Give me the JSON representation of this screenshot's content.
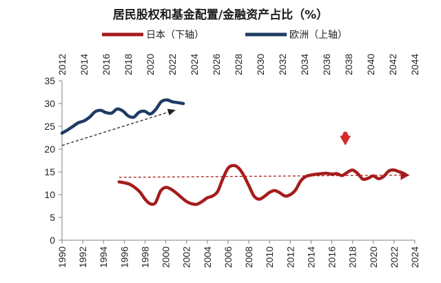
{
  "chart_data": {
    "type": "line",
    "title": "居民股权和基金配置/金融资产占比（%）",
    "legend_placement": "top",
    "grid": false,
    "y_axis": {
      "range": [
        0,
        35
      ],
      "ticks": [
        "0",
        "5",
        "10",
        "15",
        "20",
        "25",
        "30",
        "35"
      ]
    },
    "x_axis_bottom": {
      "range": [
        1990,
        2024
      ],
      "ticks": [
        "1990",
        "1992",
        "1994",
        "1996",
        "1998",
        "2000",
        "2002",
        "2004",
        "2006",
        "2008",
        "2010",
        "2012",
        "2014",
        "2016",
        "2018",
        "2020",
        "2022",
        "2024"
      ]
    },
    "x_axis_top": {
      "range": [
        2012,
        2044
      ],
      "ticks": [
        "2012",
        "2014",
        "2016",
        "2018",
        "2020",
        "2022",
        "2024",
        "2026",
        "2028",
        "2030",
        "2032",
        "2034",
        "2036",
        "2038",
        "2040",
        "2042",
        "2044"
      ]
    },
    "series": [
      {
        "name": "日本（下轴）",
        "axis": "bottom",
        "color": "#a51c1c",
        "x": [
          1995.5,
          1996,
          1996.5,
          1997,
          1997.5,
          1998,
          1998.5,
          1999,
          1999.5,
          2000,
          2000.5,
          2001,
          2001.5,
          2002,
          2002.5,
          2003,
          2003.5,
          2004,
          2004.5,
          2005,
          2005.5,
          2006,
          2006.5,
          2007,
          2007.5,
          2008,
          2008.5,
          2009,
          2009.5,
          2010,
          2010.5,
          2011,
          2011.5,
          2012,
          2012.5,
          2013,
          2013.5,
          2014,
          2014.5,
          2015,
          2015.5,
          2016,
          2016.5,
          2017,
          2017.5,
          2018,
          2018.5,
          2019,
          2019.5,
          2020,
          2020.5,
          2021,
          2021.5,
          2022,
          2022.5,
          2023
        ],
        "values": [
          12.8,
          12.6,
          12.3,
          11.6,
          10.6,
          9.0,
          8.0,
          8.2,
          10.8,
          11.6,
          11.2,
          10.4,
          9.4,
          8.5,
          8.0,
          7.9,
          8.5,
          9.3,
          9.7,
          10.7,
          13.5,
          15.8,
          16.4,
          15.9,
          14.3,
          12.0,
          9.7,
          9.0,
          9.6,
          10.5,
          10.9,
          10.4,
          9.7,
          10.0,
          11.0,
          13.0,
          14.0,
          14.3,
          14.5,
          14.6,
          14.7,
          14.5,
          14.6,
          14.2,
          14.9,
          15.4,
          14.6,
          13.4,
          13.6,
          14.1,
          13.5,
          14.0,
          15.2,
          15.4,
          15.0,
          14.6
        ]
      },
      {
        "name": "欧洲（上轴）",
        "axis": "top",
        "color": "#1f3c64",
        "x": [
          2012,
          2012.5,
          2013,
          2013.5,
          2014,
          2014.5,
          2015,
          2015.5,
          2016,
          2016.5,
          2017,
          2017.5,
          2018,
          2018.5,
          2019,
          2019.5,
          2020,
          2020.5,
          2021,
          2021.5,
          2022,
          2022.5,
          2023
        ],
        "values": [
          23.5,
          24.2,
          25.0,
          25.8,
          26.2,
          27.0,
          28.2,
          28.5,
          28.0,
          27.9,
          28.8,
          28.4,
          27.3,
          27.0,
          28.1,
          28.3,
          27.7,
          28.7,
          30.4,
          30.8,
          30.4,
          30.2,
          30.0
        ]
      }
    ],
    "annotations": [
      {
        "kind": "dashed-trend-arrow",
        "axis": "top",
        "from": [
          2012,
          20.8
        ],
        "to": [
          2022.3,
          28.6
        ]
      },
      {
        "kind": "dashed-trend-arrow",
        "axis": "bottom",
        "from": [
          1995.5,
          13.8
        ],
        "to": [
          2023.5,
          14.3
        ]
      },
      {
        "kind": "down-arrow",
        "axis": "bottom",
        "x": 2017.3,
        "from_y": 23.8,
        "to_y": 20.8
      }
    ]
  }
}
